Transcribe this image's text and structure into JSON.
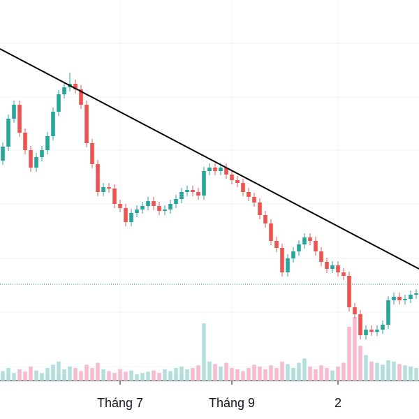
{
  "chart_data": {
    "type": "candlestick",
    "categories": [
      null,
      null,
      null,
      null,
      null,
      null,
      null,
      null,
      null,
      null,
      null,
      null,
      null,
      null,
      null,
      null,
      null,
      null,
      null,
      null,
      null,
      "Tháng 7",
      null,
      null,
      null,
      null,
      null,
      null,
      null,
      null,
      null,
      null,
      null,
      null,
      null,
      null,
      null,
      null,
      null,
      null,
      null,
      "Tháng 9",
      null,
      null,
      null,
      null,
      null,
      null,
      null,
      null,
      null,
      null,
      null,
      null,
      null,
      null,
      null,
      null,
      null,
      null,
      "2",
      null,
      null,
      null,
      null,
      null,
      null,
      null,
      null,
      null,
      null,
      null,
      null,
      null,
      null
    ],
    "open": [
      370,
      390,
      430,
      450,
      410,
      385,
      360,
      375,
      385,
      405,
      440,
      465,
      475,
      480,
      472,
      450,
      395,
      365,
      325,
      332,
      330,
      308,
      302,
      282,
      295,
      300,
      305,
      312,
      305,
      298,
      300,
      308,
      315,
      325,
      328,
      325,
      320,
      355,
      360,
      355,
      360,
      350,
      342,
      338,
      325,
      318,
      310,
      292,
      280,
      255,
      245,
      210,
      230,
      240,
      250,
      260,
      255,
      240,
      225,
      215,
      220,
      210,
      205,
      160,
      150,
      120,
      128,
      125,
      128,
      135,
      170,
      175,
      170,
      172,
      178
    ],
    "high": [
      396,
      436,
      456,
      456,
      416,
      391,
      381,
      391,
      411,
      446,
      471,
      481,
      496,
      486,
      478,
      456,
      401,
      371,
      338,
      338,
      336,
      314,
      308,
      301,
      306,
      311,
      318,
      318,
      311,
      306,
      314,
      321,
      331,
      334,
      334,
      331,
      361,
      366,
      366,
      366,
      366,
      356,
      348,
      344,
      331,
      324,
      316,
      298,
      286,
      261,
      251,
      236,
      246,
      256,
      266,
      266,
      261,
      246,
      231,
      226,
      226,
      216,
      211,
      166,
      156,
      134,
      134,
      134,
      141,
      176,
      181,
      181,
      178,
      184,
      186
    ],
    "low": [
      364,
      384,
      424,
      404,
      379,
      354,
      354,
      369,
      379,
      399,
      434,
      459,
      469,
      466,
      444,
      389,
      359,
      319,
      319,
      324,
      302,
      296,
      276,
      276,
      289,
      294,
      299,
      299,
      292,
      292,
      294,
      302,
      309,
      319,
      319,
      314,
      314,
      349,
      349,
      349,
      344,
      336,
      332,
      319,
      312,
      304,
      286,
      274,
      249,
      239,
      204,
      204,
      224,
      234,
      244,
      249,
      234,
      219,
      209,
      209,
      204,
      199,
      154,
      144,
      114,
      114,
      119,
      119,
      122,
      129,
      164,
      164,
      164,
      166,
      172
    ],
    "close": [
      390,
      430,
      450,
      410,
      385,
      360,
      375,
      385,
      405,
      440,
      465,
      475,
      480,
      472,
      450,
      395,
      365,
      325,
      332,
      330,
      308,
      302,
      282,
      295,
      300,
      305,
      312,
      305,
      298,
      300,
      308,
      315,
      325,
      328,
      325,
      320,
      355,
      360,
      355,
      360,
      350,
      342,
      338,
      325,
      318,
      310,
      292,
      280,
      255,
      245,
      210,
      230,
      240,
      250,
      260,
      255,
      240,
      225,
      215,
      220,
      210,
      205,
      160,
      150,
      120,
      128,
      125,
      128,
      135,
      170,
      175,
      170,
      172,
      178,
      180
    ],
    "volume": [
      15,
      20,
      12,
      18,
      14,
      22,
      16,
      12,
      20,
      25,
      30,
      18,
      22,
      20,
      15,
      25,
      20,
      28,
      18,
      15,
      12,
      18,
      14,
      16,
      10,
      12,
      14,
      16,
      12,
      18,
      15,
      20,
      22,
      18,
      20,
      24,
      90,
      30,
      26,
      22,
      28,
      20,
      18,
      15,
      20,
      25,
      22,
      18,
      24,
      20,
      30,
      26,
      20,
      28,
      35,
      22,
      18,
      24,
      20,
      16,
      22,
      28,
      85,
      100,
      55,
      40,
      30,
      28,
      25,
      32,
      30,
      26,
      24,
      22,
      20
    ],
    "ylim": [
      0,
      600
    ],
    "volume_ylim": [
      0,
      600
    ],
    "up_color": "#26a69a",
    "down_color": "#ef5350",
    "volume_up_color": "#b2dfdb",
    "volume_down_color": "#f8bbd0",
    "trendline": [
      530,
      215
    ],
    "trendline_color": "#000000",
    "price_line": 193,
    "price_line_color": "#26a69a"
  }
}
